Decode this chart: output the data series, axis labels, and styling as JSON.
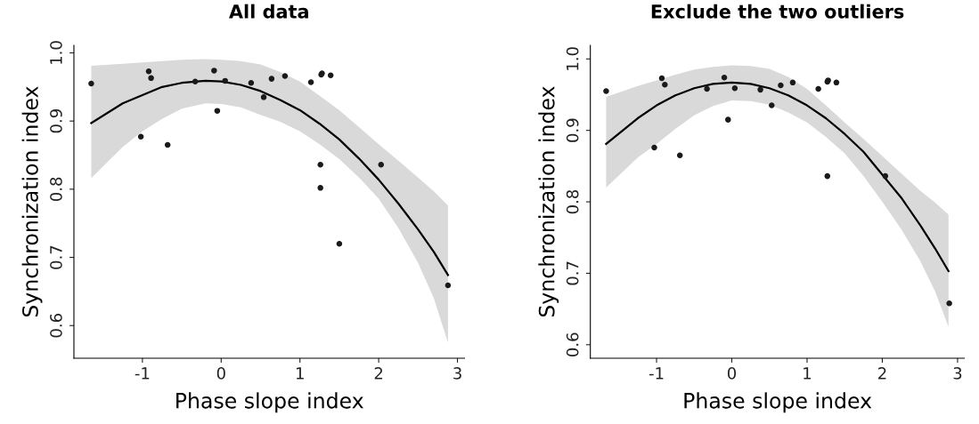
{
  "chart_data": [
    {
      "type": "scatter",
      "title": "All data",
      "xlabel": "Phase slope index",
      "ylabel": "Synchronization index",
      "xlim": [
        -1.87,
        3.09
      ],
      "ylim": [
        0.552,
        1.011
      ],
      "xticks": [
        -1,
        0,
        1,
        2,
        3
      ],
      "yticks": [
        {
          "value": 0.6,
          "label": "0.6"
        },
        {
          "value": 0.7,
          "label": "0.7"
        },
        {
          "value": 0.8,
          "label": "0.8"
        },
        {
          "value": 0.9,
          "label": "0.9"
        },
        {
          "value": 1.0,
          "label": "1.0"
        }
      ],
      "grid": false,
      "legend": false,
      "series": [
        {
          "type": "line",
          "color": "#000000",
          "x": [
            -1.65,
            -1.25,
            -1,
            -0.75,
            -0.5,
            -0.2,
            0,
            0.25,
            0.5,
            0.75,
            1,
            1.25,
            1.5,
            1.75,
            2,
            2.25,
            2.5,
            2.7,
            2.88
          ],
          "values": [
            0.897,
            0.926,
            0.938,
            0.95,
            0.956,
            0.959,
            0.958,
            0.953,
            0.944,
            0.931,
            0.916,
            0.896,
            0.873,
            0.845,
            0.814,
            0.779,
            0.741,
            0.708,
            0.674
          ],
          "lower": [
            0.816,
            0.862,
            0.885,
            0.903,
            0.918,
            0.926,
            0.925,
            0.92,
            0.909,
            0.899,
            0.885,
            0.866,
            0.844,
            0.817,
            0.786,
            0.743,
            0.692,
            0.64,
            0.575
          ],
          "upper": [
            0.981,
            0.984,
            0.986,
            0.988,
            0.99,
            0.991,
            0.99,
            0.988,
            0.983,
            0.972,
            0.958,
            0.937,
            0.916,
            0.891,
            0.866,
            0.842,
            0.817,
            0.797,
            0.776
          ]
        },
        {
          "color": "#1a1a1a",
          "marker": "circle",
          "x": [
            -1.65,
            -0.92,
            -0.89,
            -1.02,
            -0.68,
            -0.33,
            -0.09,
            -0.05,
            0.05,
            0.38,
            0.54,
            0.64,
            0.81,
            1.14,
            1.27,
            1.28,
            1.39,
            1.26,
            1.26,
            1.5,
            2.03,
            2.88
          ],
          "values": [
            0.955,
            0.973,
            0.963,
            0.877,
            0.865,
            0.958,
            0.974,
            0.915,
            0.959,
            0.956,
            0.935,
            0.962,
            0.966,
            0.957,
            0.968,
            0.97,
            0.967,
            0.836,
            0.802,
            0.72,
            0.836,
            0.659
          ]
        }
      ]
    },
    {
      "type": "scatter",
      "title": "Exclude the two outliers",
      "xlabel": "Phase slope index",
      "ylabel": "Synchronization index",
      "xlim": [
        -1.88,
        3.09
      ],
      "ylim": [
        0.581,
        1.019
      ],
      "xticks": [
        -1,
        0,
        1,
        2,
        3
      ],
      "yticks": [
        {
          "value": 0.6,
          "label": "0.6"
        },
        {
          "value": 0.7,
          "label": "0.7"
        },
        {
          "value": 0.8,
          "label": "0.8"
        },
        {
          "value": 0.9,
          "label": "0.9"
        },
        {
          "value": 1.0,
          "label": "1.0"
        }
      ],
      "grid": false,
      "legend": false,
      "series": [
        {
          "type": "line",
          "color": "#000000",
          "x": [
            -1.67,
            -1.25,
            -1,
            -0.75,
            -0.5,
            -0.25,
            0,
            0.25,
            0.5,
            0.75,
            1,
            1.25,
            1.5,
            1.75,
            2,
            2.25,
            2.5,
            2.7,
            2.88
          ],
          "values": [
            0.881,
            0.917,
            0.935,
            0.949,
            0.959,
            0.965,
            0.967,
            0.965,
            0.959,
            0.949,
            0.935,
            0.917,
            0.895,
            0.87,
            0.838,
            0.806,
            0.768,
            0.735,
            0.703
          ],
          "lower": [
            0.82,
            0.862,
            0.881,
            0.902,
            0.921,
            0.934,
            0.942,
            0.941,
            0.936,
            0.925,
            0.911,
            0.891,
            0.868,
            0.836,
            0.8,
            0.762,
            0.718,
            0.675,
            0.625
          ],
          "upper": [
            0.947,
            0.962,
            0.97,
            0.978,
            0.985,
            0.989,
            0.991,
            0.99,
            0.986,
            0.975,
            0.958,
            0.935,
            0.911,
            0.888,
            0.864,
            0.84,
            0.816,
            0.799,
            0.782
          ]
        },
        {
          "color": "#1a1a1a",
          "marker": "circle",
          "x": [
            -1.67,
            -0.93,
            -0.89,
            -1.03,
            -0.69,
            -0.33,
            -0.1,
            -0.05,
            0.04,
            0.38,
            0.53,
            0.65,
            0.81,
            1.15,
            1.27,
            1.28,
            1.39,
            1.27,
            2.04,
            2.89
          ],
          "values": [
            0.955,
            0.973,
            0.964,
            0.876,
            0.865,
            0.958,
            0.974,
            0.915,
            0.959,
            0.957,
            0.935,
            0.963,
            0.967,
            0.958,
            0.968,
            0.97,
            0.967,
            0.836,
            0.836,
            0.658
          ]
        }
      ]
    }
  ]
}
